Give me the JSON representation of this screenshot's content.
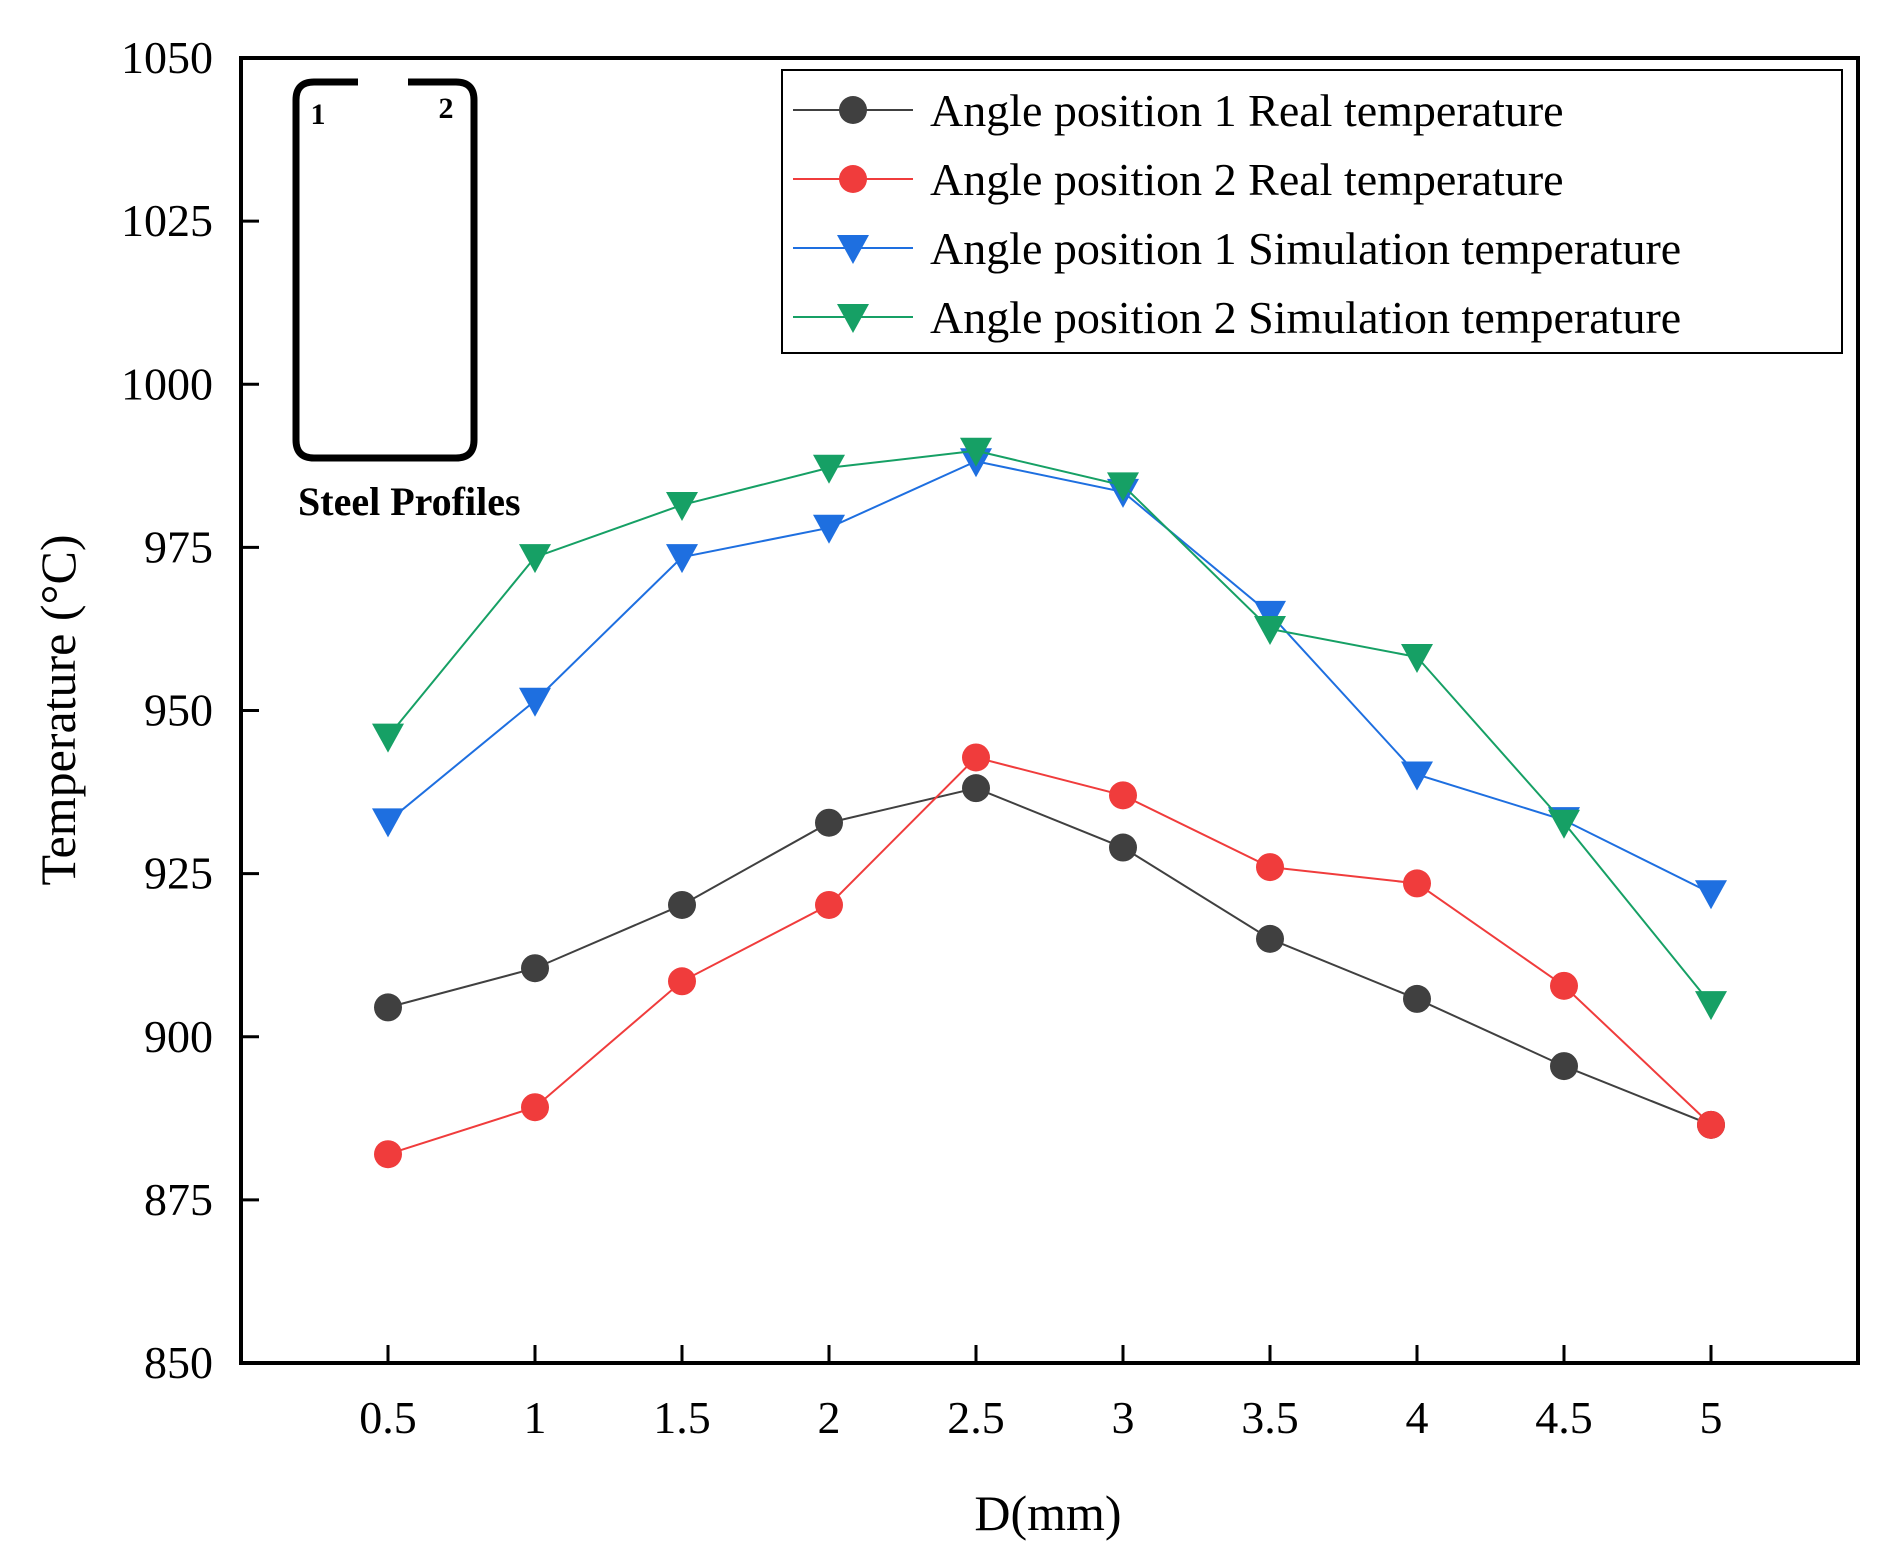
{
  "chart_data": {
    "type": "line",
    "title": "",
    "xlabel": "D(mm)",
    "ylabel": "Temperature (°C)",
    "x": [
      0.5,
      1,
      1.5,
      2,
      2.5,
      3,
      3.5,
      4,
      4.5,
      5
    ],
    "x_tick_labels": [
      "0.5",
      "1",
      "1.5",
      "2",
      "2.5",
      "3",
      "3.5",
      "4",
      "4.5",
      "5"
    ],
    "y_ticks": [
      850,
      875,
      900,
      925,
      950,
      975,
      1000,
      1025,
      1050
    ],
    "y_tick_labels": [
      "850",
      "875",
      "900",
      "925",
      "950",
      "975",
      "1000",
      "1025",
      "1050"
    ],
    "xlim": [
      0,
      5.5
    ],
    "ylim": [
      850,
      1050
    ],
    "grid": false,
    "legend_position": "top-right",
    "series": [
      {
        "name": "Angle position 1 Real temperature",
        "marker": "circle",
        "color": "#404040",
        "line_color": "#404040",
        "values": [
          904.5,
          910.5,
          920.2,
          932.8,
          938.1,
          929.0,
          915.0,
          905.8,
          895.5,
          886.5
        ]
      },
      {
        "name": "Angle position 2 Real temperature",
        "marker": "circle",
        "color": "#f03c3c",
        "line_color": "#f03c3c",
        "values": [
          882.0,
          889.2,
          908.5,
          920.2,
          942.8,
          937.0,
          926.0,
          923.5,
          907.8,
          886.5
        ]
      },
      {
        "name": "Angle position 1 Simulation temperature",
        "marker": "triangle-down",
        "color": "#1e6fe0",
        "line_color": "#1e6fe0",
        "values": [
          933.0,
          951.5,
          973.5,
          978.0,
          988.2,
          983.5,
          964.8,
          940.2,
          933.2,
          922.0
        ]
      },
      {
        "name": "Angle position 2 Simulation temperature",
        "marker": "triangle-down",
        "color": "#16a065",
        "line_color": "#16a065",
        "values": [
          946.0,
          973.5,
          981.5,
          987.2,
          989.8,
          984.5,
          962.5,
          958.2,
          932.8,
          905.0
        ]
      }
    ],
    "inset": {
      "title": "Steel Profiles",
      "labels": [
        "1",
        "2"
      ]
    }
  }
}
